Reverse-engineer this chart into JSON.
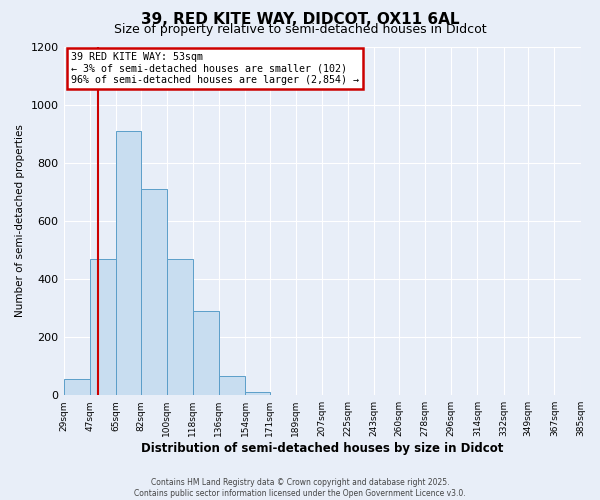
{
  "title": "39, RED KITE WAY, DIDCOT, OX11 6AL",
  "subtitle": "Size of property relative to semi-detached houses in Didcot",
  "xlabel": "Distribution of semi-detached houses by size in Didcot",
  "ylabel": "Number of semi-detached properties",
  "bin_edges": [
    29,
    47,
    65,
    82,
    100,
    118,
    136,
    154,
    171,
    189,
    207,
    225,
    243,
    260,
    278,
    296,
    314,
    332,
    349,
    367,
    385
  ],
  "bar_heights": [
    55,
    470,
    910,
    710,
    470,
    290,
    65,
    10,
    0,
    0,
    0,
    0,
    0,
    0,
    0,
    0,
    0,
    0,
    0,
    0
  ],
  "tick_labels": [
    "29sqm",
    "47sqm",
    "65sqm",
    "82sqm",
    "100sqm",
    "118sqm",
    "136sqm",
    "154sqm",
    "171sqm",
    "189sqm",
    "207sqm",
    "225sqm",
    "243sqm",
    "260sqm",
    "278sqm",
    "296sqm",
    "314sqm",
    "332sqm",
    "349sqm",
    "367sqm",
    "385sqm"
  ],
  "bar_color": "#c8ddf0",
  "bar_edge_color": "#5b9ec9",
  "bg_color": "#e8eef8",
  "plot_bg_color": "#e8eef8",
  "grid_color": "#ffffff",
  "vline_x": 53,
  "vline_color": "#cc0000",
  "annotation_line1": "39 RED KITE WAY: 53sqm",
  "annotation_line2": "← 3% of semi-detached houses are smaller (102)",
  "annotation_line3": "96% of semi-detached houses are larger (2,854) →",
  "annotation_box_color": "#cc0000",
  "ylim": [
    0,
    1200
  ],
  "yticks": [
    0,
    200,
    400,
    600,
    800,
    1000,
    1200
  ],
  "footer_line1": "Contains HM Land Registry data © Crown copyright and database right 2025.",
  "footer_line2": "Contains public sector information licensed under the Open Government Licence v3.0.",
  "title_fontsize": 11,
  "subtitle_fontsize": 9
}
